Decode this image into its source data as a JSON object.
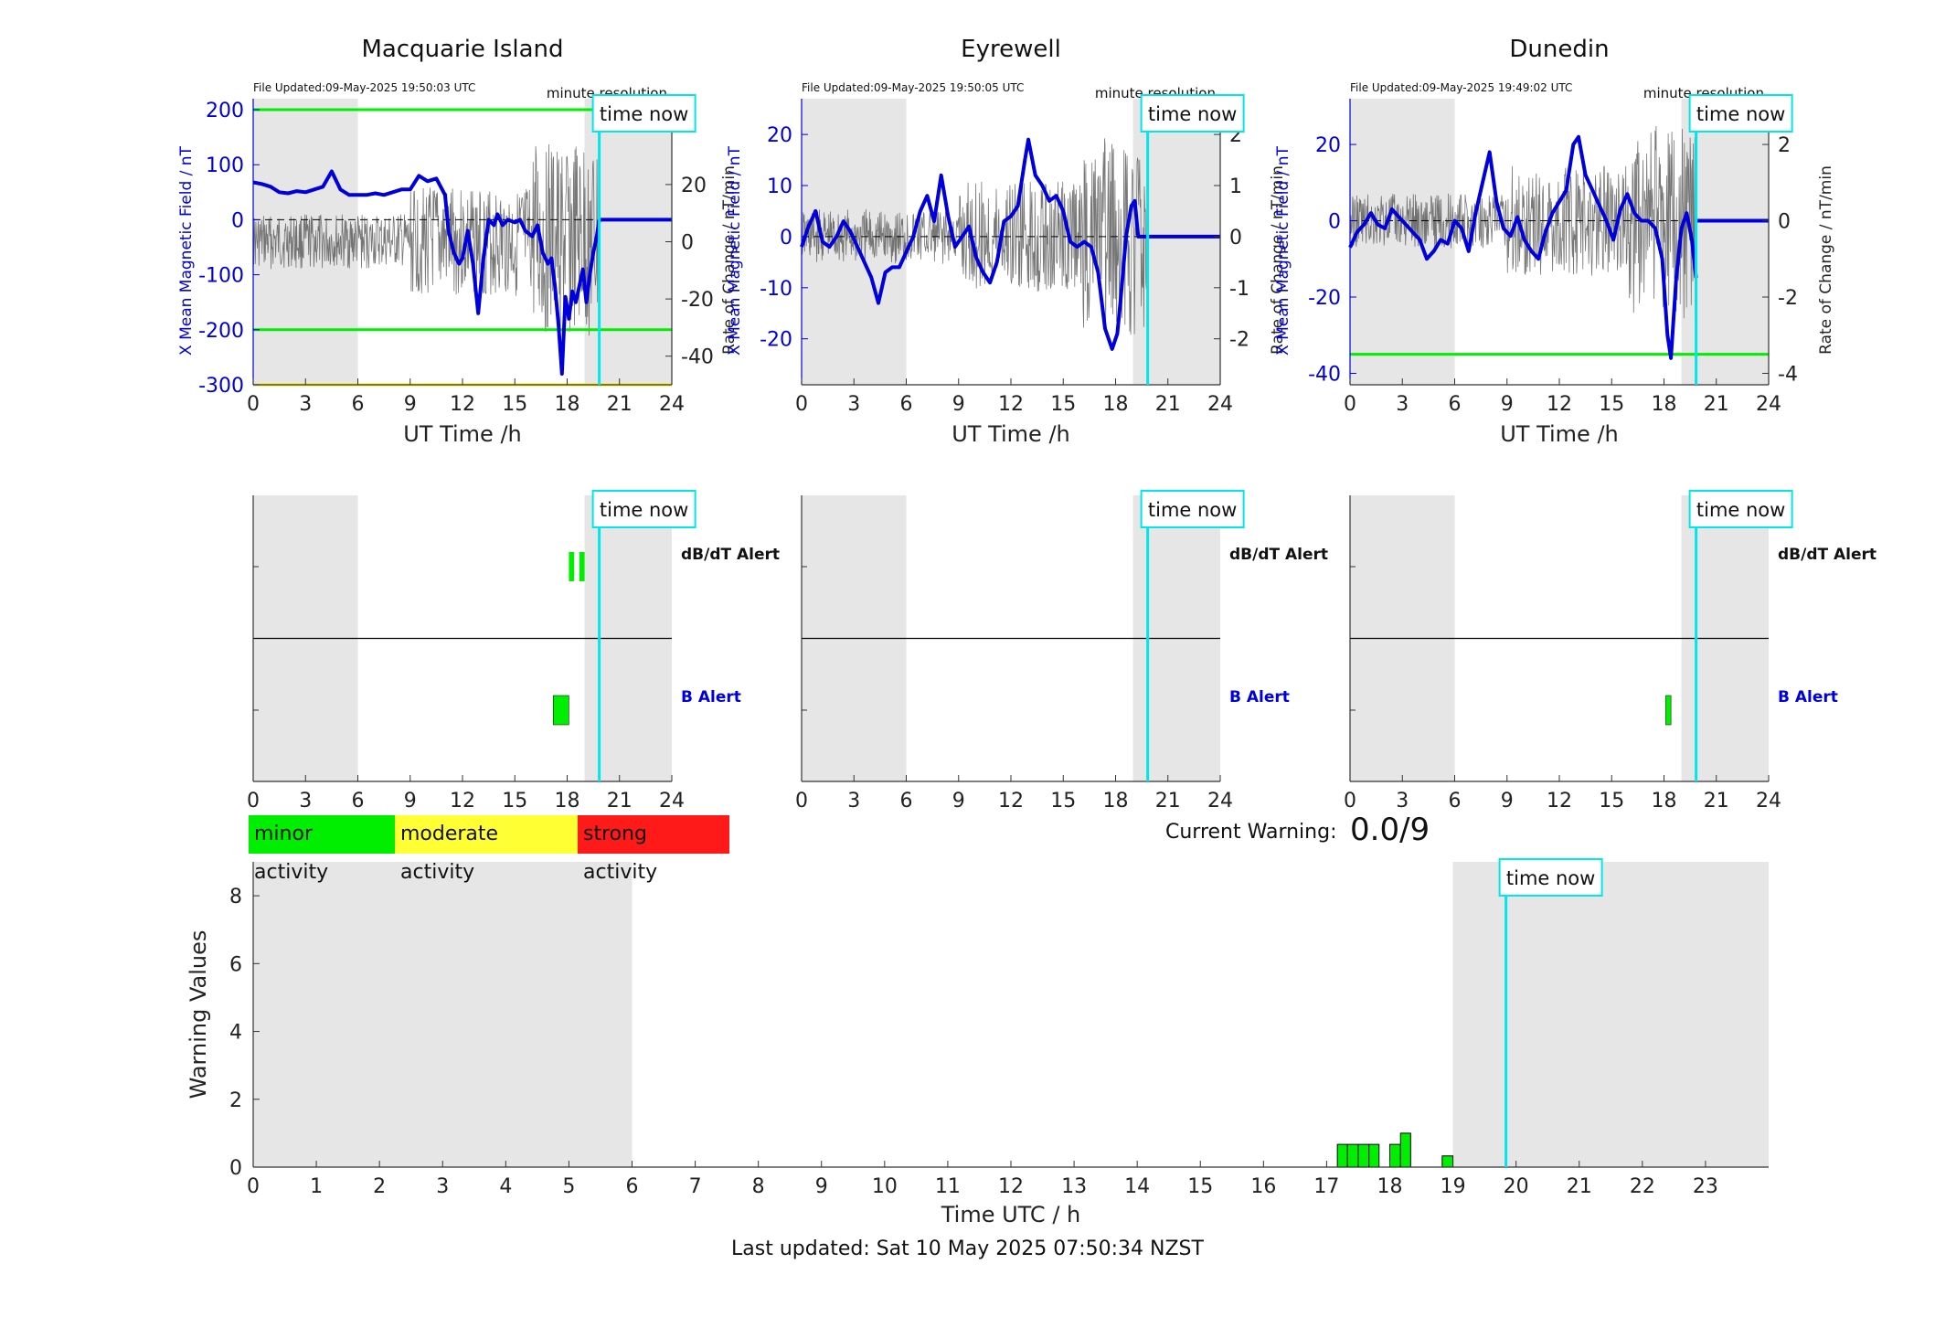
{
  "colors": {
    "night": "#e6e6e6",
    "time_now": "#00e5ee",
    "series": "#0000dd",
    "rate": "#555555",
    "threshold": "#00ee00",
    "yellow": "#ffee00",
    "minor": "#00ee00",
    "moderate": "#ffff33",
    "strong": "#ff1a1a"
  },
  "labels": {
    "time_now": "time now",
    "minute_resolution": "minute resolution",
    "ylabel_left": "X Mean Magnetic Field / nT",
    "ylabel_right": "Rate of Change / nT/min",
    "xlabel_top": "UT Time /h",
    "dbdt_alert": "dB/dT Alert",
    "b_alert": "B Alert"
  },
  "legend": {
    "minor": "minor activity",
    "moderate": "moderate activity",
    "strong": "strong activity"
  },
  "current_warning": {
    "label": "Current Warning:",
    "value": "0.0/9"
  },
  "last_updated": "Last updated: Sat 10 May 2025 07:50:34 NZST",
  "chart_data": [
    {
      "id": "mac",
      "type": "line",
      "title": "Macquarie Island",
      "file_updated": "File Updated:09-May-2025 19:50:03 UTC",
      "xlabel": "UT Time /h",
      "xlim": [
        0,
        24
      ],
      "xticks": [
        0,
        3,
        6,
        9,
        12,
        15,
        18,
        21,
        24
      ],
      "ylabel": "X Mean Magnetic Field / nT",
      "ylim": [
        -300,
        220
      ],
      "yticks": [
        -300,
        -200,
        -100,
        0,
        100,
        200
      ],
      "ylabel_right": "Rate of Change / nT/min",
      "ylim_right": [
        -50,
        50
      ],
      "yticks_right": [
        -40,
        -20,
        0,
        20
      ],
      "night_bands": [
        [
          0,
          6
        ],
        [
          19,
          24
        ]
      ],
      "time_now": 19.84,
      "thresholds": [
        {
          "y": 200,
          "color": "green"
        },
        {
          "y": -200,
          "color": "green"
        },
        {
          "y": -300,
          "color": "yellow"
        }
      ],
      "series": {
        "x": [
          0,
          0.5,
          1,
          1.5,
          2,
          2.5,
          3,
          3.5,
          4,
          4.5,
          5,
          5.5,
          6,
          6.5,
          7,
          7.5,
          8,
          8.5,
          9,
          9.5,
          10,
          10.5,
          11,
          11.2,
          11.5,
          11.8,
          12,
          12.3,
          12.6,
          12.9,
          13.2,
          13.5,
          13.8,
          14,
          14.3,
          14.6,
          15,
          15.3,
          15.6,
          16,
          16.3,
          16.6,
          16.9,
          17.1,
          17.3,
          17.5,
          17.7,
          17.9,
          18.1,
          18.3,
          18.5,
          18.7,
          18.9,
          19.1,
          19.3,
          19.5,
          19.7,
          19.84
        ],
        "values": [
          68,
          65,
          60,
          50,
          48,
          52,
          50,
          55,
          60,
          88,
          55,
          45,
          45,
          45,
          48,
          45,
          50,
          55,
          55,
          80,
          70,
          75,
          45,
          -20,
          -60,
          -80,
          -70,
          -20,
          -80,
          -170,
          -70,
          0,
          -10,
          10,
          -10,
          0,
          -5,
          0,
          -20,
          -30,
          -10,
          -60,
          -80,
          -70,
          -120,
          -190,
          -280,
          -140,
          -180,
          -130,
          -150,
          -120,
          -90,
          -150,
          -100,
          -60,
          -30,
          0
        ]
      },
      "flat_after_now": 0,
      "alerts": {
        "dbdt": [
          {
            "start": 18.1,
            "end": 18.4
          },
          {
            "start": 18.7,
            "end": 19.0
          }
        ],
        "b": [
          {
            "start": 17.2,
            "end": 18.1
          }
        ]
      }
    },
    {
      "id": "eyr",
      "type": "line",
      "title": "Eyrewell",
      "file_updated": "File Updated:09-May-2025 19:50:05 UTC",
      "xlabel": "UT Time /h",
      "xlim": [
        0,
        24
      ],
      "xticks": [
        0,
        3,
        6,
        9,
        12,
        15,
        18,
        21,
        24
      ],
      "ylabel": "X Mean Magnetic Field / nT",
      "ylim": [
        -29,
        27
      ],
      "yticks": [
        -20,
        -10,
        0,
        10,
        20
      ],
      "ylabel_right": "Rate of Change / nT/min",
      "ylim_right": [
        -2.9,
        2.7
      ],
      "yticks_right": [
        -2,
        -1,
        0,
        1,
        2
      ],
      "night_bands": [
        [
          0,
          6
        ],
        [
          19,
          24
        ]
      ],
      "time_now": 19.84,
      "thresholds": [],
      "series": {
        "x": [
          0,
          0.4,
          0.8,
          1.2,
          1.6,
          2,
          2.4,
          2.8,
          3.2,
          3.6,
          4,
          4.4,
          4.8,
          5.2,
          5.6,
          6,
          6.4,
          6.8,
          7.2,
          7.6,
          8,
          8.4,
          8.8,
          9.2,
          9.6,
          10,
          10.4,
          10.8,
          11.2,
          11.6,
          12,
          12.4,
          12.8,
          13,
          13.4,
          13.8,
          14.2,
          14.6,
          15,
          15.4,
          15.8,
          16.2,
          16.6,
          17,
          17.4,
          17.8,
          18.1,
          18.3,
          18.6,
          18.9,
          19.1,
          19.3,
          19.6,
          19.84
        ],
        "values": [
          -2,
          2,
          5,
          -1,
          -2,
          0,
          3,
          1,
          -2,
          -5,
          -8,
          -13,
          -7,
          -6,
          -6,
          -3,
          0,
          5,
          8,
          3,
          12,
          4,
          -2,
          0,
          2,
          -4,
          -7,
          -9,
          -5,
          3,
          4,
          6,
          15,
          19,
          12,
          10,
          7,
          8,
          5,
          -1,
          -2,
          -1,
          -2,
          -7,
          -18,
          -22,
          -19,
          -12,
          0,
          6,
          7,
          0,
          0,
          0
        ]
      },
      "flat_after_now": 0,
      "alerts": {
        "dbdt": [],
        "b": []
      }
    },
    {
      "id": "dun",
      "type": "line",
      "title": "Dunedin",
      "file_updated": "File Updated:09-May-2025 19:49:02 UTC",
      "xlabel": "UT Time /h",
      "xlim": [
        0,
        24
      ],
      "xticks": [
        0,
        3,
        6,
        9,
        12,
        15,
        18,
        21,
        24
      ],
      "ylabel": "X Mean Magnetic Field / nT",
      "ylim": [
        -43,
        32
      ],
      "yticks": [
        -40,
        -20,
        0,
        20
      ],
      "ylabel_right": "Rate of Change / nT/min",
      "ylim_right": [
        -4.3,
        3.2
      ],
      "yticks_right": [
        -4,
        -2,
        0,
        2
      ],
      "night_bands": [
        [
          0,
          6
        ],
        [
          19,
          24
        ]
      ],
      "time_now": 19.84,
      "thresholds": [
        {
          "y": -35,
          "color": "green"
        }
      ],
      "series": {
        "x": [
          0,
          0.4,
          0.8,
          1.2,
          1.6,
          2,
          2.4,
          2.8,
          3.2,
          3.6,
          4,
          4.4,
          4.8,
          5.2,
          5.6,
          6,
          6.4,
          6.8,
          7.2,
          7.6,
          8,
          8.4,
          8.8,
          9.2,
          9.6,
          10,
          10.4,
          10.8,
          11.2,
          11.6,
          12,
          12.4,
          12.8,
          13.1,
          13.5,
          13.9,
          14.3,
          14.7,
          15.1,
          15.5,
          15.9,
          16.3,
          16.7,
          17.1,
          17.5,
          17.9,
          18.2,
          18.4,
          18.7,
          19.0,
          19.3,
          19.6,
          19.84
        ],
        "values": [
          -7,
          -3,
          -1,
          2,
          -1,
          -2,
          3,
          1,
          -1,
          -3,
          -5,
          -10,
          -8,
          -5,
          -6,
          0,
          -2,
          -8,
          2,
          10,
          18,
          5,
          -2,
          -4,
          1,
          -5,
          -8,
          -10,
          -3,
          2,
          5,
          8,
          20,
          22,
          12,
          8,
          4,
          0,
          -5,
          3,
          7,
          2,
          0,
          0,
          -2,
          -10,
          -30,
          -36,
          -15,
          -2,
          2,
          -5,
          -15
        ]
      },
      "flat_after_now": 0,
      "alerts": {
        "dbdt": [],
        "b": [
          {
            "start": 18.1,
            "end": 18.4
          }
        ]
      }
    },
    {
      "id": "warn",
      "type": "bar",
      "xlabel": "Time UTC / h",
      "ylabel": "Warning Values",
      "xlim": [
        0,
        24
      ],
      "xticks": [
        0,
        1,
        2,
        3,
        4,
        5,
        6,
        7,
        8,
        9,
        10,
        11,
        12,
        13,
        14,
        15,
        16,
        17,
        18,
        19,
        20,
        21,
        22,
        23
      ],
      "ylim": [
        0,
        9
      ],
      "yticks": [
        0,
        2,
        4,
        6,
        8
      ],
      "night_bands": [
        [
          0,
          6
        ],
        [
          19,
          24
        ]
      ],
      "time_now": 19.84,
      "bars": [
        {
          "start": 17.17,
          "end": 17.33,
          "value": 0.67
        },
        {
          "start": 17.33,
          "end": 17.5,
          "value": 0.67
        },
        {
          "start": 17.5,
          "end": 17.67,
          "value": 0.67
        },
        {
          "start": 17.67,
          "end": 17.83,
          "value": 0.67
        },
        {
          "start": 18.0,
          "end": 18.17,
          "value": 0.67
        },
        {
          "start": 18.17,
          "end": 18.33,
          "value": 1.0
        },
        {
          "start": 18.83,
          "end": 19.0,
          "value": 0.33
        }
      ]
    }
  ]
}
